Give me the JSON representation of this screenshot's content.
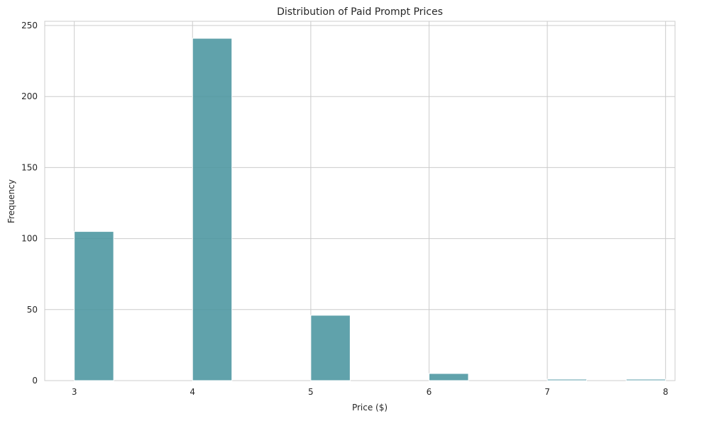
{
  "chart_data": {
    "type": "bar",
    "title": "Distribution of Paid Prompt Prices",
    "xlabel": "Price ($)",
    "ylabel": "Frequency",
    "x_ticks": [
      3,
      4,
      5,
      6,
      7,
      8
    ],
    "y_ticks": [
      0,
      50,
      100,
      150,
      200,
      250
    ],
    "xlim": [
      2.75,
      8.08
    ],
    "ylim": [
      0,
      253
    ],
    "bin_width": 0.333,
    "bins": [
      {
        "start": 3.0,
        "end": 3.333,
        "value": 105
      },
      {
        "start": 3.333,
        "end": 3.667,
        "value": 0
      },
      {
        "start": 3.667,
        "end": 4.0,
        "value": 0
      },
      {
        "start": 4.0,
        "end": 4.333,
        "value": 241
      },
      {
        "start": 4.333,
        "end": 4.667,
        "value": 0
      },
      {
        "start": 4.667,
        "end": 5.0,
        "value": 0
      },
      {
        "start": 5.0,
        "end": 5.333,
        "value": 46
      },
      {
        "start": 5.333,
        "end": 5.667,
        "value": 0
      },
      {
        "start": 5.667,
        "end": 6.0,
        "value": 0
      },
      {
        "start": 6.0,
        "end": 6.333,
        "value": 5
      },
      {
        "start": 6.333,
        "end": 6.667,
        "value": 0
      },
      {
        "start": 6.667,
        "end": 7.0,
        "value": 0
      },
      {
        "start": 7.0,
        "end": 7.333,
        "value": 1
      },
      {
        "start": 7.333,
        "end": 7.667,
        "value": 0
      },
      {
        "start": 7.667,
        "end": 8.0,
        "value": 1
      }
    ],
    "bar_color": "#4a959f",
    "grid": true,
    "legend": "none"
  }
}
